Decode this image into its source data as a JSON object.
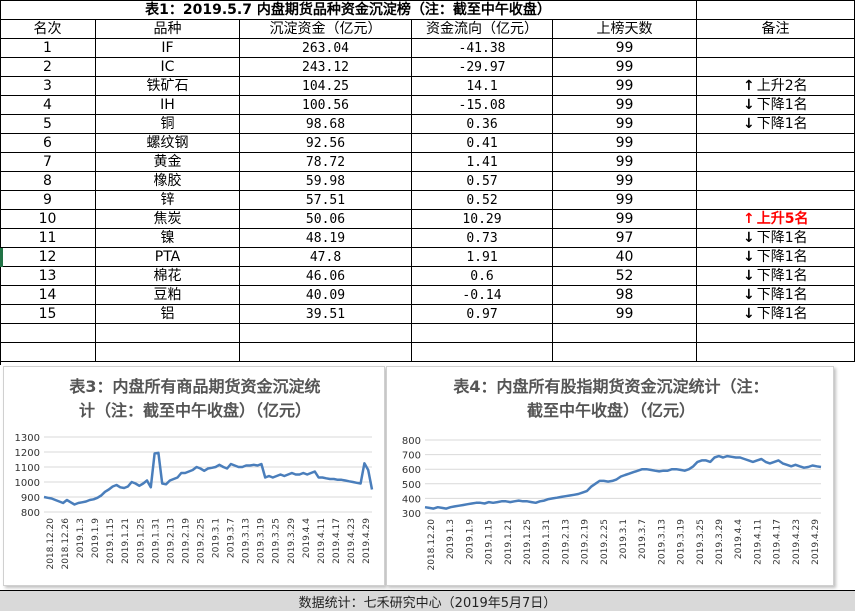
{
  "table": {
    "title": "表1：2019.5.7 内盘期货品种资金沉淀榜（注：截至中午收盘）",
    "headers": [
      "名次",
      "品种",
      "沉淀资金（亿元）",
      "资金流向（亿元）",
      "上榜天数",
      "备注"
    ],
    "rows": [
      {
        "rank": "1",
        "name": "IF",
        "funds": "263.04",
        "flow": "-41.38",
        "days": "99",
        "note_arrow": "",
        "note_text": "",
        "note_color": ""
      },
      {
        "rank": "2",
        "name": "IC",
        "funds": "243.12",
        "flow": "-29.97",
        "days": "99",
        "note_arrow": "",
        "note_text": "",
        "note_color": ""
      },
      {
        "rank": "3",
        "name": "铁矿石",
        "funds": "104.25",
        "flow": "14.1",
        "days": "99",
        "note_arrow": "↑",
        "note_text": "上升2名",
        "note_color": ""
      },
      {
        "rank": "4",
        "name": "IH",
        "funds": "100.56",
        "flow": "-15.08",
        "days": "99",
        "note_arrow": "↓",
        "note_text": "下降1名",
        "note_color": ""
      },
      {
        "rank": "5",
        "name": "铜",
        "funds": "98.68",
        "flow": "0.36",
        "days": "99",
        "note_arrow": "↓",
        "note_text": "下降1名",
        "note_color": ""
      },
      {
        "rank": "6",
        "name": "螺纹钢",
        "funds": "92.56",
        "flow": "0.41",
        "days": "99",
        "note_arrow": "",
        "note_text": "",
        "note_color": ""
      },
      {
        "rank": "7",
        "name": "黄金",
        "funds": "78.72",
        "flow": "1.41",
        "days": "99",
        "note_arrow": "",
        "note_text": "",
        "note_color": ""
      },
      {
        "rank": "8",
        "name": "橡胶",
        "funds": "59.98",
        "flow": "0.57",
        "days": "99",
        "note_arrow": "",
        "note_text": "",
        "note_color": ""
      },
      {
        "rank": "9",
        "name": "锌",
        "funds": "57.51",
        "flow": "0.52",
        "days": "99",
        "note_arrow": "",
        "note_text": "",
        "note_color": ""
      },
      {
        "rank": "10",
        "name": "焦炭",
        "funds": "50.06",
        "flow": "10.29",
        "days": "99",
        "note_arrow": "↑",
        "note_text": "上升5名",
        "note_color": "#ff0000"
      },
      {
        "rank": "11",
        "name": "镍",
        "funds": "48.19",
        "flow": "0.73",
        "days": "97",
        "note_arrow": "↓",
        "note_text": "下降1名",
        "note_color": ""
      },
      {
        "rank": "12",
        "name": "PTA",
        "funds": "47.8",
        "flow": "1.91",
        "days": "40",
        "note_arrow": "↓",
        "note_text": "下降1名",
        "note_color": ""
      },
      {
        "rank": "13",
        "name": "棉花",
        "funds": "46.06",
        "flow": "0.6",
        "days": "52",
        "note_arrow": "↓",
        "note_text": "下降1名",
        "note_color": ""
      },
      {
        "rank": "14",
        "name": "豆粕",
        "funds": "40.09",
        "flow": "-0.14",
        "days": "98",
        "note_arrow": "↓",
        "note_text": "下降1名",
        "note_color": ""
      },
      {
        "rank": "15",
        "name": "铝",
        "funds": "39.51",
        "flow": "0.97",
        "days": "99",
        "note_arrow": "↓",
        "note_text": "下降1名",
        "note_color": ""
      }
    ]
  },
  "chart_data": [
    {
      "type": "line",
      "title": "表3：内盘所有商品期货资金沉淀统计（注：截至中午收盘）（亿元）",
      "title_lines": [
        "表3：内盘所有商品期货资金沉淀统",
        "计（注：截至中午收盘）（亿元）"
      ],
      "ylim": [
        800,
        1300
      ],
      "yticks": [
        800,
        900,
        1000,
        1100,
        1200,
        1300
      ],
      "xtick_labels": [
        "2018.12.20",
        "2018.12.26",
        "2019.1.3",
        "2019.1.9",
        "2019.1.15",
        "2019.1.21",
        "2019.1.25",
        "2019.1.31",
        "2019.2.13",
        "2019.2.19",
        "2019.2.25",
        "2019.3.1",
        "2019.3.7",
        "2019.3.13",
        "2019.3.19",
        "2019.3.25",
        "2019.3.29",
        "2019.4.4",
        "2019.4.11",
        "2019.4.17",
        "2019.4.23",
        "2019.4.29"
      ],
      "series_color": "#4a7ebb",
      "values": [
        900,
        895,
        890,
        880,
        870,
        860,
        880,
        865,
        850,
        860,
        865,
        870,
        880,
        885,
        895,
        910,
        935,
        950,
        970,
        980,
        965,
        960,
        970,
        1000,
        990,
        975,
        990,
        1010,
        965,
        1190,
        1195,
        990,
        985,
        1010,
        1020,
        1030,
        1060,
        1060,
        1070,
        1080,
        1100,
        1090,
        1075,
        1090,
        1095,
        1100,
        1115,
        1100,
        1090,
        1120,
        1110,
        1100,
        1100,
        1110,
        1110,
        1115,
        1110,
        1120,
        1030,
        1040,
        1030,
        1040,
        1050,
        1040,
        1050,
        1060,
        1050,
        1050,
        1060,
        1050,
        1060,
        1070,
        1030,
        1030,
        1025,
        1020,
        1020,
        1015,
        1015,
        1010,
        1005,
        1000,
        995,
        990,
        1125,
        1080,
        950
      ]
    },
    {
      "type": "line",
      "title": "表4：内盘所有股指期货资金沉淀统计（注：截至中午收盘）（亿元）",
      "title_lines": [
        "表4：内盘所有股指期货资金沉淀统计（注：",
        "截至中午收盘）（亿元）"
      ],
      "ylim": [
        300,
        800
      ],
      "yticks": [
        300,
        400,
        500,
        600,
        700,
        800
      ],
      "xtick_labels": [
        "2018.12.20",
        "2019.1.3",
        "2019.1.9",
        "2019.1.15",
        "2019.1.21",
        "2019.1.25",
        "2019.1.31",
        "2019.2.13",
        "2019.2.19",
        "2019.2.25",
        "2019.3.1",
        "2019.3.7",
        "2019.3.13",
        "2019.3.19",
        "2019.3.25",
        "2019.3.29",
        "2019.4.4",
        "2019.4.11",
        "2019.4.17",
        "2019.4.23",
        "2019.4.29"
      ],
      "series_color": "#4a7ebb",
      "values": [
        340,
        335,
        330,
        340,
        335,
        330,
        340,
        345,
        350,
        355,
        360,
        365,
        370,
        370,
        365,
        375,
        370,
        375,
        380,
        380,
        375,
        380,
        385,
        380,
        380,
        375,
        370,
        380,
        385,
        395,
        400,
        405,
        410,
        415,
        420,
        425,
        430,
        440,
        450,
        480,
        500,
        520,
        520,
        515,
        520,
        530,
        550,
        560,
        570,
        580,
        590,
        600,
        600,
        595,
        590,
        585,
        590,
        590,
        600,
        600,
        595,
        590,
        600,
        620,
        650,
        660,
        660,
        650,
        680,
        690,
        680,
        690,
        685,
        680,
        680,
        670,
        660,
        650,
        660,
        670,
        650,
        640,
        650,
        660,
        640,
        630,
        620,
        630,
        620,
        610,
        615,
        625,
        620,
        615
      ]
    }
  ],
  "footer": "数据统计：七禾研究中心（2019年5月7日）"
}
